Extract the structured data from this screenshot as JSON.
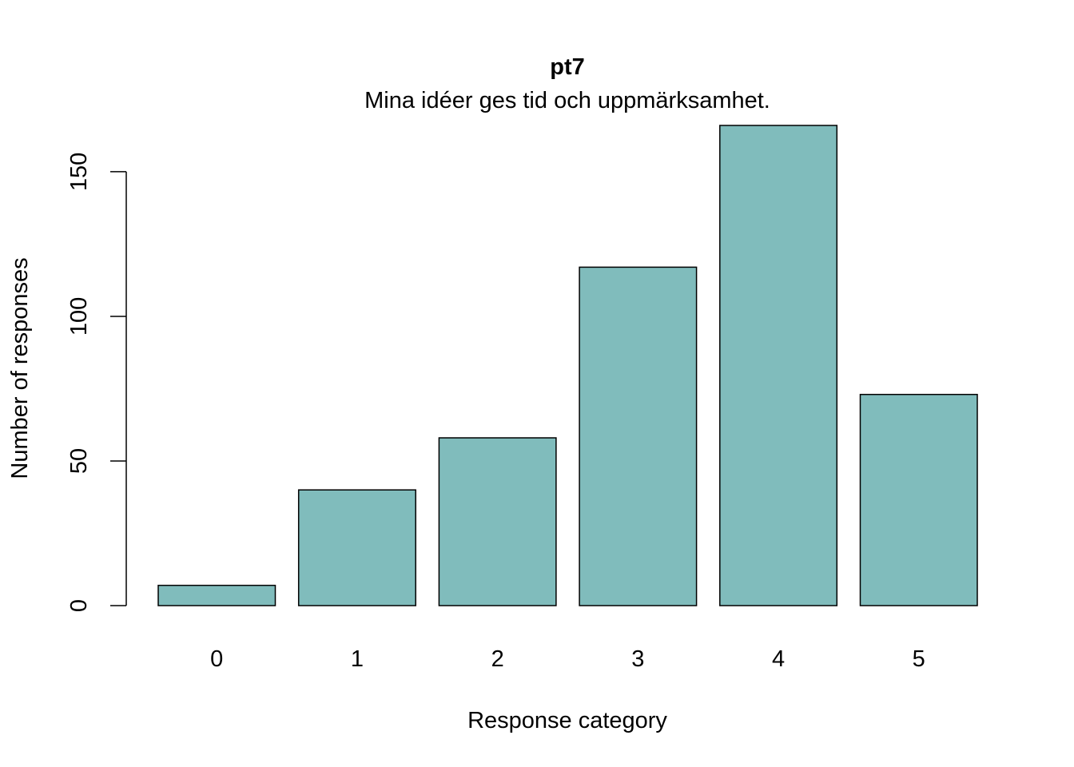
{
  "chart_data": {
    "type": "bar",
    "title": "pt7",
    "subtitle": "Mina idéer ges tid och uppmärksamhet.",
    "xlabel": "Response category",
    "ylabel": "Number of responses",
    "categories": [
      "0",
      "1",
      "2",
      "3",
      "4",
      "5"
    ],
    "values": [
      7,
      40,
      58,
      117,
      166,
      73
    ],
    "ylim": [
      0,
      166
    ],
    "y_ticks": [
      0,
      50,
      100,
      150
    ],
    "y_tick_labels": [
      "0",
      "50",
      "100",
      "150"
    ],
    "grid": false,
    "legend": "none",
    "bar_color": "#80bcbc",
    "bar_border_color": "#000000"
  }
}
